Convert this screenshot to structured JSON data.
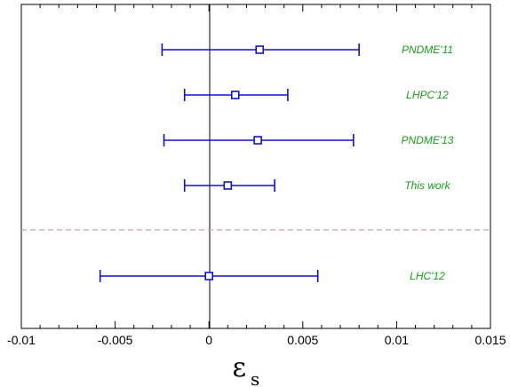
{
  "chart_data": {
    "type": "scatter",
    "title": "",
    "xlabel": "ε",
    "xlabel_sub": "s",
    "ylabel": "",
    "xlim": [
      -0.01,
      0.015
    ],
    "x_ticks": [
      -0.01,
      -0.005,
      0,
      0.005,
      0.01,
      0.015
    ],
    "x_tick_labels": [
      "-0.01",
      "-0.005",
      "0",
      "0.005",
      "0.01",
      "0.015"
    ],
    "grid": false,
    "series": [
      {
        "points": [
          {
            "label": "PNDME'11",
            "x": 0.0027,
            "xerr_low": -0.0025,
            "xerr_high": 0.008
          },
          {
            "label": "LHPC'12",
            "x": 0.0014,
            "xerr_low": -0.0013,
            "xerr_high": 0.0042
          },
          {
            "label": "PNDME'13",
            "x": 0.0026,
            "xerr_low": -0.0024,
            "xerr_high": 0.0077
          },
          {
            "label": "This work",
            "x": 0.001,
            "xerr_low": -0.0013,
            "xerr_high": 0.0035
          },
          {
            "label": "LHC'12",
            "x": 0.0,
            "xerr_low": -0.0058,
            "xerr_high": 0.0058
          }
        ]
      }
    ],
    "colors": {
      "points": "#1010d0",
      "labels": "#1a9b1a",
      "separator": "#c8a0a8",
      "axes": "#000000"
    }
  }
}
